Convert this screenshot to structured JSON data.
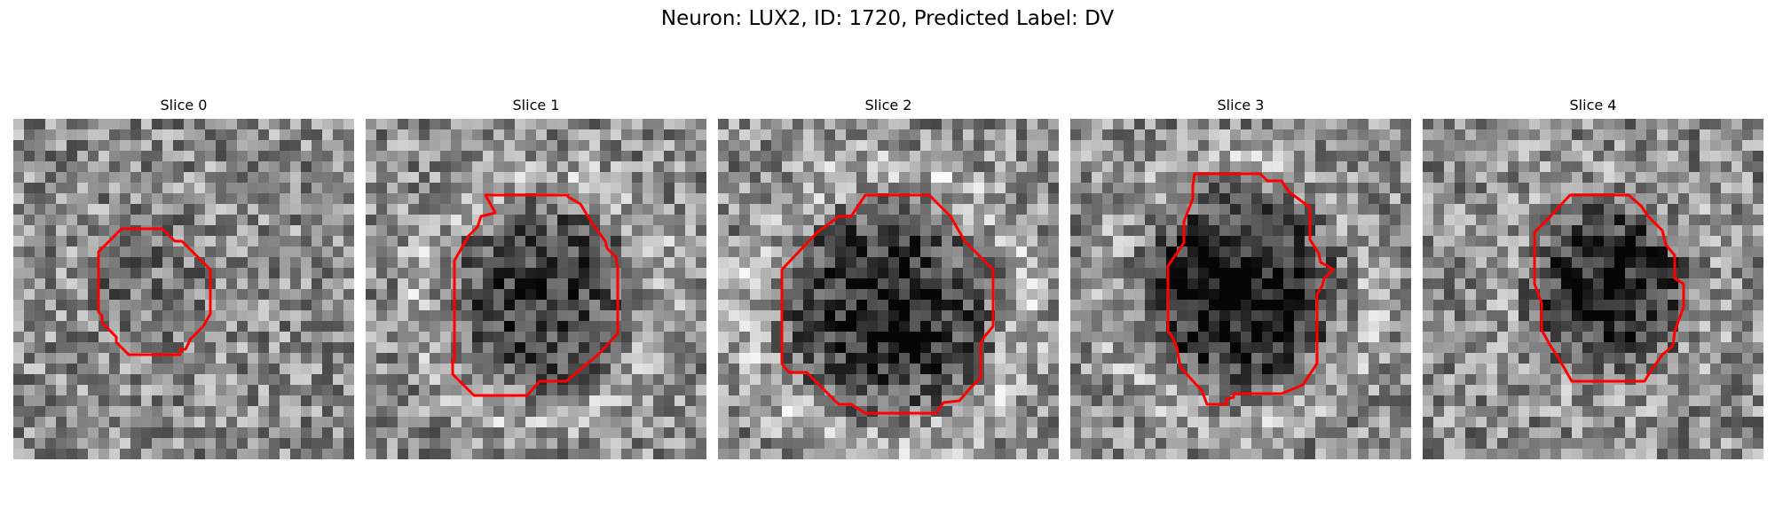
{
  "figure": {
    "title": "Neuron: LUX2, ID: 1720, Predicted Label: DV"
  },
  "contour_color": "#ff0000",
  "panels": [
    {
      "title": "Slice 0"
    },
    {
      "title": "Slice 1"
    },
    {
      "title": "Slice 2"
    },
    {
      "title": "Slice 3"
    },
    {
      "title": "Slice 4"
    }
  ]
}
